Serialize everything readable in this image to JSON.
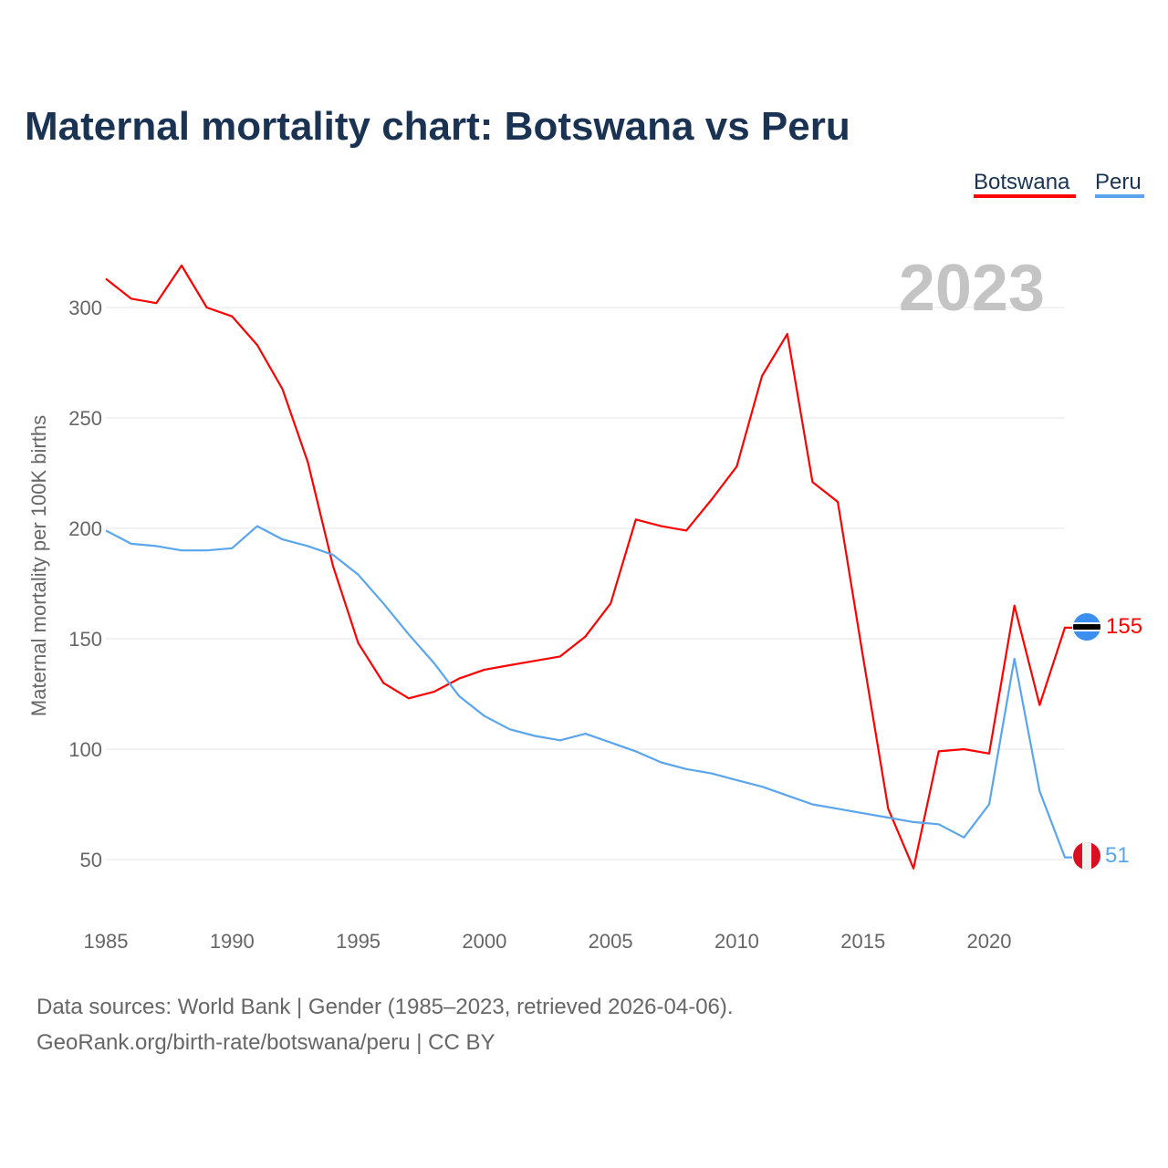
{
  "chart_data": {
    "type": "line",
    "title": "Maternal mortality chart: Botswana vs Peru",
    "xlabel": "",
    "ylabel": "Maternal mortality per 100K births",
    "xlim": [
      1985,
      2023
    ],
    "ylim": [
      30,
      320
    ],
    "x_ticks": [
      1985,
      1990,
      1995,
      2000,
      2005,
      2010,
      2015,
      2020
    ],
    "y_ticks": [
      50,
      100,
      150,
      200,
      250,
      300
    ],
    "grid": true,
    "legend_position": "top-right",
    "year_label": "2023",
    "x": [
      1985,
      1986,
      1987,
      1988,
      1989,
      1990,
      1991,
      1992,
      1993,
      1994,
      1995,
      1996,
      1997,
      1998,
      1999,
      2000,
      2001,
      2002,
      2003,
      2004,
      2005,
      2006,
      2007,
      2008,
      2009,
      2010,
      2011,
      2012,
      2013,
      2014,
      2015,
      2016,
      2017,
      2018,
      2019,
      2020,
      2021,
      2022,
      2023
    ],
    "series": [
      {
        "name": "Botswana",
        "color": "#ff0000",
        "end_label": "155",
        "values": [
          313,
          304,
          302,
          319,
          300,
          296,
          283,
          263,
          230,
          183,
          148,
          130,
          123,
          126,
          132,
          136,
          138,
          140,
          142,
          151,
          166,
          204,
          201,
          199,
          213,
          228,
          269,
          288,
          221,
          212,
          142,
          73,
          46,
          99,
          100,
          98,
          165,
          120,
          155
        ]
      },
      {
        "name": "Peru",
        "color": "#5aa5ec",
        "end_label": "51",
        "values": [
          199,
          193,
          192,
          190,
          190,
          191,
          201,
          195,
          192,
          188,
          179,
          166,
          152,
          139,
          124,
          115,
          109,
          106,
          104,
          107,
          103,
          99,
          94,
          91,
          89,
          86,
          83,
          79,
          75,
          73,
          71,
          69,
          67,
          66,
          60,
          75,
          141,
          81,
          51
        ]
      }
    ]
  },
  "footer": {
    "line1": "Data sources: World Bank | Gender (1985–2023, retrieved 2026-04-06).",
    "line2": "GeoRank.org/birth-rate/botswana/peru | CC BY"
  }
}
